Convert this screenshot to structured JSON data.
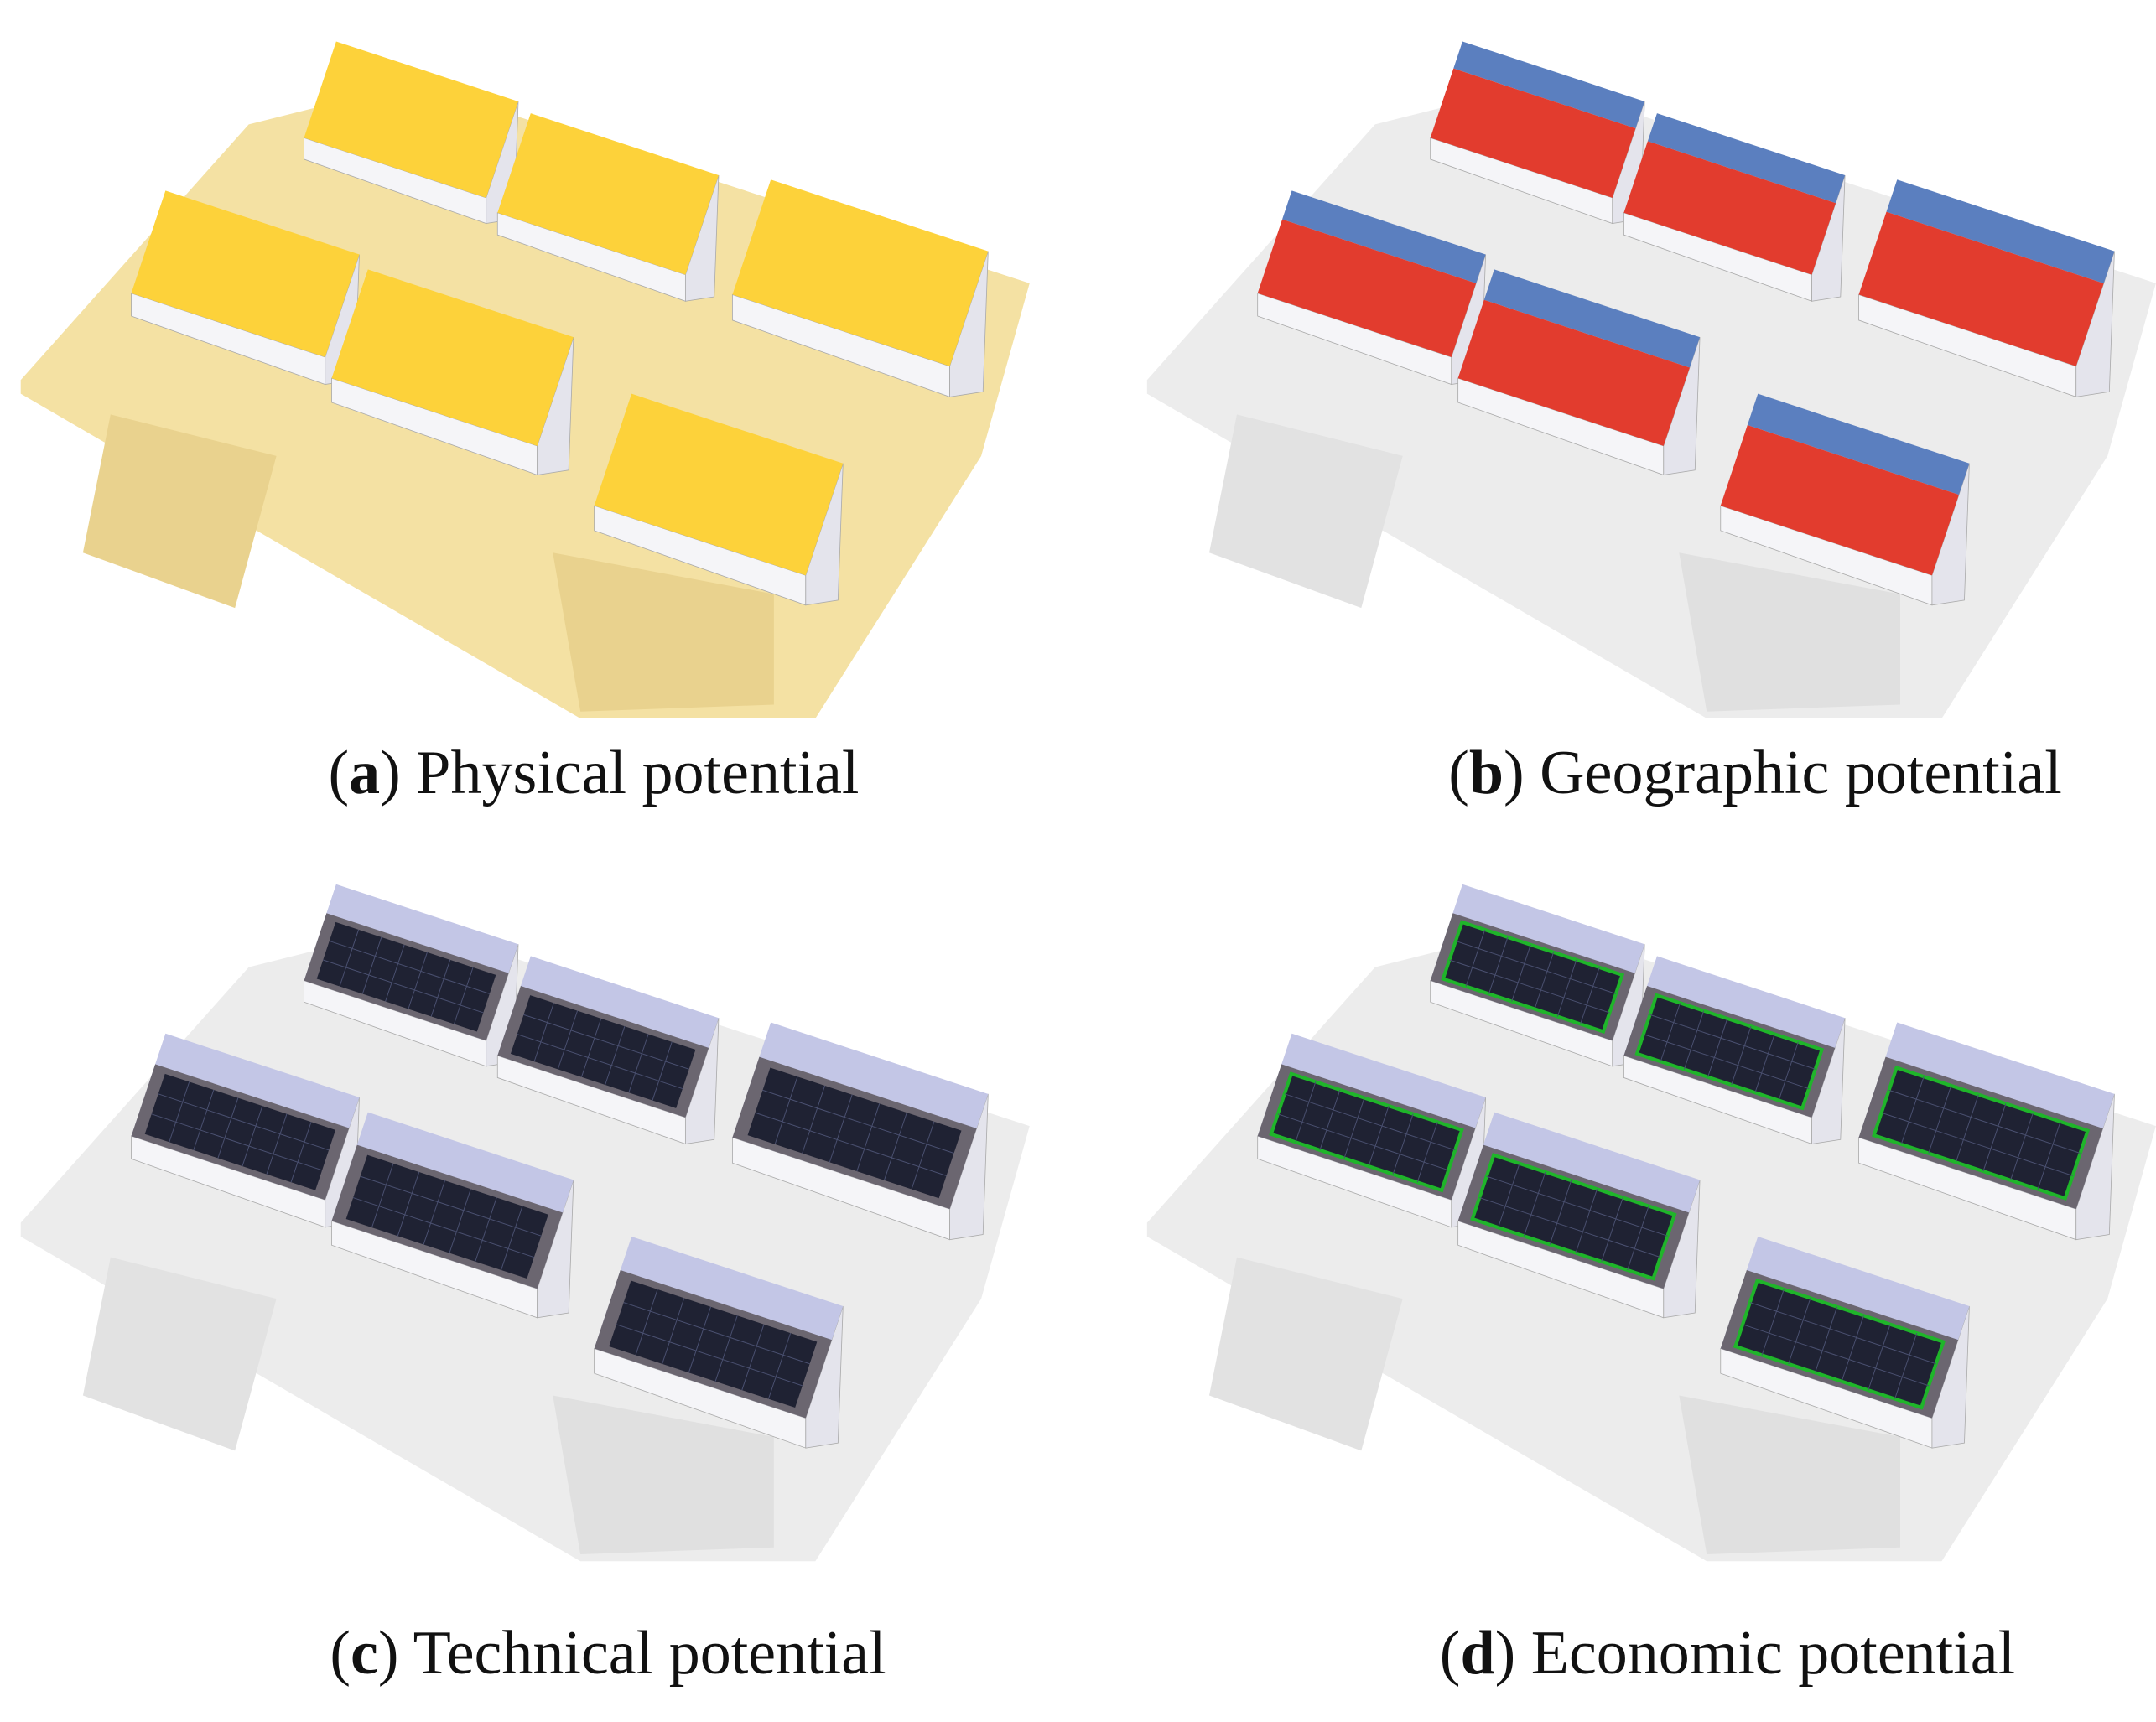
{
  "panels": [
    {
      "caption_parts": [
        "(",
        "a",
        ") Physical potential"
      ]
    },
    {
      "caption_parts": [
        "(",
        "b",
        ") Geographic potential"
      ]
    },
    {
      "caption_parts": [
        "(",
        "c",
        ") Technical potential"
      ]
    },
    {
      "caption_parts": [
        "(",
        "d",
        ") Economic potential"
      ]
    }
  ]
}
